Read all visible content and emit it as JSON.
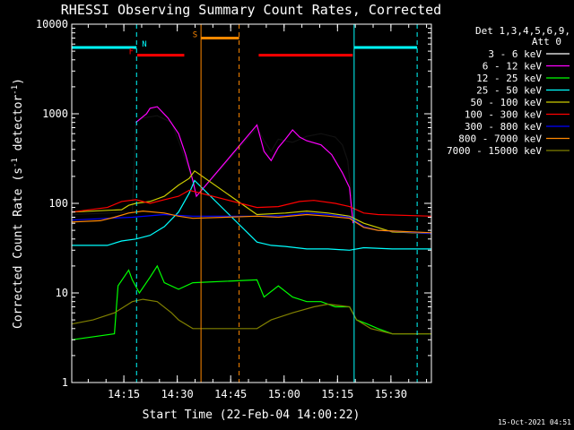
{
  "chart_data": {
    "type": "line",
    "title": "RHESSI Observing Summary Count Rates, Corrected",
    "xlabel": "Start Time (22-Feb-04 14:00:22)",
    "ylabel": "Corrected Count Rate (s⁻¹ detector⁻¹)",
    "yscale": "log",
    "ylim": [
      1,
      10000
    ],
    "xlim_minutes": [
      0,
      101
    ],
    "x_ticks": [
      "14:15",
      "14:30",
      "14:45",
      "15:00",
      "15:15",
      "15:30"
    ],
    "y_ticks": [
      "1",
      "10",
      "100",
      "1000",
      "10000"
    ],
    "legend": {
      "header": [
        "Det 1,3,4,5,6,9,",
        "Att 0"
      ],
      "placement": "top-right-outside"
    },
    "series": [
      {
        "name": "3 - 6 keV",
        "color": "#000000",
        "points": [
          [
            0,
            75
          ],
          [
            17,
            80
          ],
          [
            18,
            800
          ],
          [
            20,
            900
          ],
          [
            24,
            950
          ],
          [
            28,
            800
          ],
          [
            30,
            500
          ],
          [
            32,
            300
          ],
          [
            34,
            180
          ],
          [
            35,
            120
          ],
          [
            52,
            700
          ],
          [
            54,
            500
          ],
          [
            56,
            380
          ],
          [
            58,
            520
          ],
          [
            62,
            480
          ],
          [
            66,
            560
          ],
          [
            70,
            600
          ],
          [
            74,
            550
          ],
          [
            76,
            450
          ],
          [
            77.5,
            300
          ],
          [
            78.5,
            120
          ]
        ]
      },
      {
        "name": "6 - 12 keV",
        "color": "#ff00ff",
        "points": [
          [
            18,
            800
          ],
          [
            21,
            1000
          ],
          [
            22,
            1150
          ],
          [
            24,
            1200
          ],
          [
            27,
            900
          ],
          [
            30,
            600
          ],
          [
            32,
            350
          ],
          [
            34,
            180
          ],
          [
            35,
            120
          ],
          [
            52,
            750
          ],
          [
            54,
            380
          ],
          [
            56,
            300
          ],
          [
            58,
            420
          ],
          [
            60,
            520
          ],
          [
            62,
            660
          ],
          [
            64,
            550
          ],
          [
            66,
            500
          ],
          [
            70,
            450
          ],
          [
            73,
            350
          ],
          [
            76,
            220
          ],
          [
            78,
            150
          ],
          [
            79,
            60
          ]
        ]
      },
      {
        "name": "12 - 25 keV",
        "color": "#00ff00",
        "points": [
          [
            0,
            3
          ],
          [
            12,
            3.5
          ],
          [
            13,
            12
          ],
          [
            16,
            18
          ],
          [
            17,
            14
          ],
          [
            19,
            10
          ],
          [
            22,
            15
          ],
          [
            24,
            20
          ],
          [
            26,
            13
          ],
          [
            30,
            11
          ],
          [
            34,
            13
          ],
          [
            52,
            14
          ],
          [
            54,
            9
          ],
          [
            58,
            12
          ],
          [
            62,
            9
          ],
          [
            66,
            8
          ],
          [
            70,
            8
          ],
          [
            74,
            7
          ],
          [
            78,
            7
          ],
          [
            80,
            5
          ],
          [
            83,
            4.5
          ],
          [
            86,
            4
          ],
          [
            90,
            3.5
          ],
          [
            101,
            3.5
          ]
        ]
      },
      {
        "name": "25 - 50 keV",
        "color": "#00ffff",
        "points": [
          [
            0,
            34
          ],
          [
            10,
            34
          ],
          [
            14,
            38
          ],
          [
            18,
            40
          ],
          [
            22,
            44
          ],
          [
            26,
            55
          ],
          [
            30,
            80
          ],
          [
            33,
            130
          ],
          [
            34.5,
            180
          ],
          [
            52,
            37
          ],
          [
            56,
            34
          ],
          [
            60,
            33
          ],
          [
            66,
            31
          ],
          [
            72,
            31
          ],
          [
            78,
            30
          ],
          [
            82,
            32
          ],
          [
            90,
            31
          ],
          [
            101,
            31
          ]
        ]
      },
      {
        "name": "50 - 100 keV",
        "color": "#cccc00",
        "points": [
          [
            0,
            80
          ],
          [
            14,
            85
          ],
          [
            16,
            95
          ],
          [
            18,
            100
          ],
          [
            22,
            105
          ],
          [
            26,
            120
          ],
          [
            30,
            160
          ],
          [
            33,
            190
          ],
          [
            34.5,
            230
          ],
          [
            52,
            75
          ],
          [
            60,
            78
          ],
          [
            66,
            82
          ],
          [
            72,
            78
          ],
          [
            78,
            72
          ],
          [
            82,
            60
          ],
          [
            90,
            48
          ],
          [
            101,
            46
          ]
        ]
      },
      {
        "name": "100 - 300 keV",
        "color": "#ff0000",
        "points": [
          [
            0,
            80
          ],
          [
            10,
            90
          ],
          [
            14,
            105
          ],
          [
            18,
            110
          ],
          [
            22,
            100
          ],
          [
            26,
            110
          ],
          [
            30,
            120
          ],
          [
            33,
            140
          ],
          [
            52,
            90
          ],
          [
            58,
            92
          ],
          [
            64,
            105
          ],
          [
            68,
            108
          ],
          [
            74,
            100
          ],
          [
            78,
            92
          ],
          [
            82,
            78
          ],
          [
            86,
            75
          ],
          [
            101,
            72
          ]
        ]
      },
      {
        "name": "300 - 800 keV",
        "color": "#0000ff",
        "points": [
          [
            0,
            65
          ],
          [
            10,
            68
          ],
          [
            17,
            70
          ],
          [
            26,
            75
          ],
          [
            34,
            72
          ],
          [
            52,
            72
          ],
          [
            60,
            73
          ],
          [
            66,
            78
          ],
          [
            72,
            75
          ],
          [
            78,
            70
          ],
          [
            82,
            55
          ],
          [
            86,
            50
          ],
          [
            101,
            46
          ]
        ]
      },
      {
        "name": "800 - 7000 keV",
        "color": "#ff8800",
        "points": [
          [
            0,
            62
          ],
          [
            8,
            64
          ],
          [
            12,
            70
          ],
          [
            16,
            78
          ],
          [
            20,
            82
          ],
          [
            26,
            78
          ],
          [
            30,
            72
          ],
          [
            34,
            68
          ],
          [
            52,
            72
          ],
          [
            58,
            70
          ],
          [
            66,
            75
          ],
          [
            72,
            72
          ],
          [
            78,
            68
          ],
          [
            82,
            54
          ],
          [
            86,
            50
          ],
          [
            101,
            47
          ]
        ]
      },
      {
        "name": "7000 - 15000 keV",
        "color": "#808000",
        "points": [
          [
            0,
            4.5
          ],
          [
            6,
            5
          ],
          [
            12,
            6
          ],
          [
            17,
            8
          ],
          [
            20,
            8.5
          ],
          [
            24,
            8
          ],
          [
            28,
            6
          ],
          [
            30,
            5
          ],
          [
            34,
            4
          ],
          [
            52,
            4
          ],
          [
            56,
            5
          ],
          [
            62,
            6
          ],
          [
            68,
            7
          ],
          [
            72,
            7.5
          ],
          [
            78,
            7
          ],
          [
            80,
            5
          ],
          [
            84,
            4
          ],
          [
            90,
            3.5
          ],
          [
            101,
            3.5
          ]
        ]
      }
    ],
    "flags": [
      {
        "label": "N",
        "color": "#00ffff",
        "level": 5500,
        "segments": [
          [
            0,
            18.2
          ],
          [
            79.3,
            97
          ]
        ]
      },
      {
        "label": "S",
        "color": "#ff8800",
        "level": 7000,
        "segments": [
          [
            36.3,
            47
          ]
        ]
      },
      {
        "label": "F",
        "color": "#ff0000",
        "level": 4500,
        "segments": [
          [
            18.4,
            31.6
          ],
          [
            52.5,
            78.9
          ]
        ]
      }
    ],
    "vlines": [
      {
        "x": 18.2,
        "color": "#00ffff",
        "style": "dashed"
      },
      {
        "x": 97,
        "color": "#00ffff",
        "style": "dashed"
      },
      {
        "x": 36.3,
        "color": "#ff8800",
        "style": "solid"
      },
      {
        "x": 47,
        "color": "#ff8800",
        "style": "dashed"
      },
      {
        "x": 79.3,
        "color": "#00ffff",
        "style": "solid"
      },
      {
        "x": 0,
        "color": "#00ffff",
        "style": "solid"
      }
    ]
  },
  "footer": {
    "timestamp": "15-Oct-2021 04:51"
  }
}
